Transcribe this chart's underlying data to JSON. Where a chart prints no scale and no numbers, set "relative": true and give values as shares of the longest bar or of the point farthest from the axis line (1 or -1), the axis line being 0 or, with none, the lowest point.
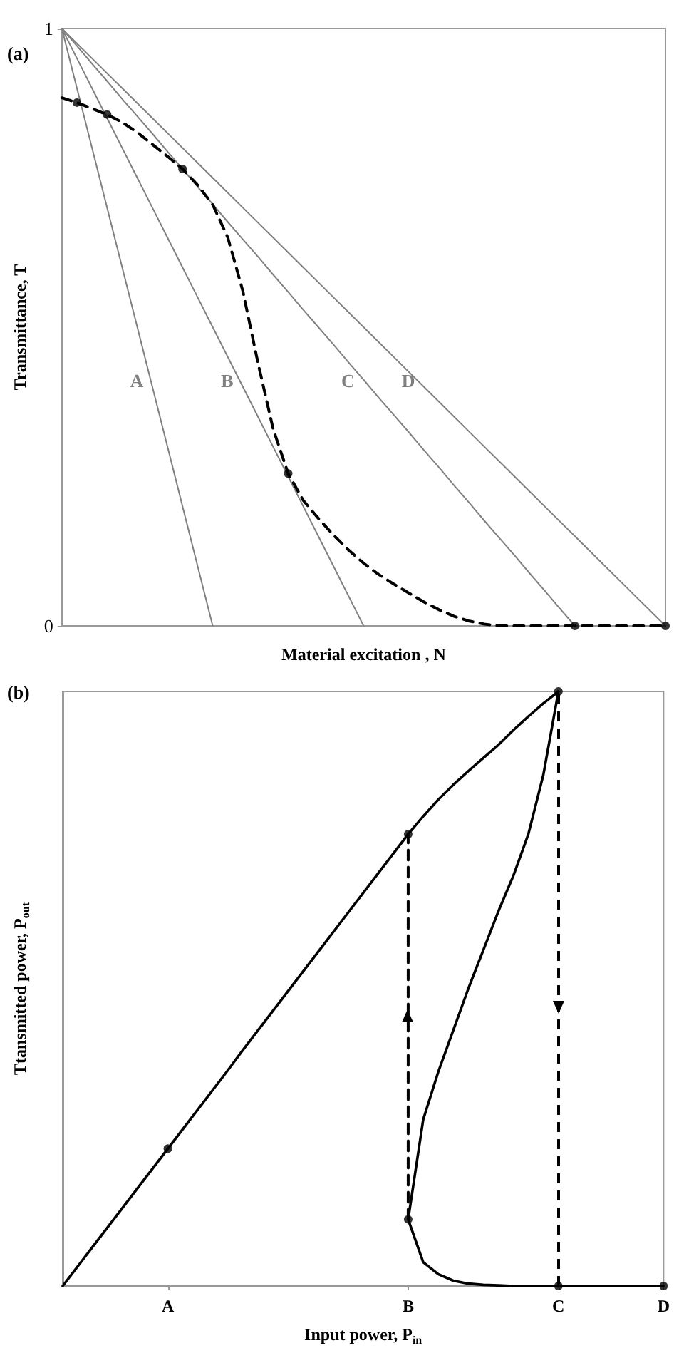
{
  "chart_data": [
    {
      "type": "line",
      "title": "(a)",
      "xlabel": "Material excitation , N",
      "ylabel": "Transmittance, T",
      "categories": [
        null,
        null,
        null,
        null,
        null,
        null,
        null,
        null,
        null,
        null,
        null,
        null,
        null,
        null,
        null,
        null,
        null,
        null,
        null,
        null,
        null,
        null,
        null,
        null,
        null,
        null,
        null,
        null,
        null,
        null,
        null,
        null,
        null,
        null,
        null,
        null,
        null,
        null,
        null,
        null,
        null
      ],
      "ylim": [
        0,
        1
      ],
      "yticks": [
        0,
        1
      ],
      "tick_labels": "y",
      "grid": false,
      "series": [
        {
          "name": "A",
          "values": [
            1,
            0.9,
            0.8,
            0.7,
            0.6,
            0.5,
            0.4,
            0.3,
            0.2,
            0.1,
            0,
            null,
            null,
            null,
            null,
            null,
            null,
            null,
            null,
            null,
            null,
            null,
            null,
            null,
            null,
            null,
            null,
            null,
            null,
            null,
            null,
            null,
            null,
            null,
            null,
            null,
            null,
            null,
            null,
            null,
            null
          ],
          "color": "#808080",
          "marker": "none"
        },
        {
          "name": "B",
          "values": [
            1,
            0.95,
            0.9,
            0.85,
            0.8,
            0.75,
            0.7,
            0.65,
            0.6,
            0.55,
            0.5,
            0.45,
            0.4,
            0.35,
            0.3,
            0.25,
            0.2,
            0.15,
            0.1,
            0.05,
            0,
            null,
            null,
            null,
            null,
            null,
            null,
            null,
            null,
            null,
            null,
            null,
            null,
            null,
            null,
            null,
            null,
            null,
            null,
            null,
            null
          ],
          "color": "#808080",
          "marker": "none"
        },
        {
          "name": "C",
          "values": [
            1,
            0.971,
            0.941,
            0.912,
            0.882,
            0.853,
            0.824,
            0.794,
            0.765,
            0.735,
            0.706,
            0.676,
            0.647,
            0.618,
            0.588,
            0.559,
            0.529,
            0.5,
            0.471,
            0.441,
            0.412,
            0.382,
            0.353,
            0.324,
            0.294,
            0.265,
            0.235,
            0.206,
            0.176,
            0.147,
            0.118,
            0.088,
            0.059,
            0.029,
            0,
            null,
            null,
            null,
            null,
            null,
            null
          ],
          "color": "#808080",
          "marker": "none"
        },
        {
          "name": "D",
          "values": [
            1,
            0.975,
            0.95,
            0.925,
            0.9,
            0.875,
            0.85,
            0.825,
            0.8,
            0.775,
            0.75,
            0.725,
            0.7,
            0.675,
            0.65,
            0.625,
            0.6,
            0.575,
            0.55,
            0.525,
            0.5,
            0.475,
            0.45,
            0.425,
            0.4,
            0.375,
            0.35,
            0.325,
            0.3,
            0.275,
            0.25,
            0.225,
            0.2,
            0.175,
            0.15,
            0.125,
            0.1,
            0.075,
            0.05,
            0.025,
            0
          ],
          "color": "#808080",
          "marker": "none"
        },
        {
          "values": [
            0.884,
            0.876,
            0.866,
            0.856,
            0.843,
            0.826,
            0.806,
            0.786,
            0.765,
            0.738,
            0.705,
            0.65,
            0.56,
            0.44,
            0.33,
            0.255,
            0.21,
            0.18,
            0.152,
            0.127,
            0.105,
            0.086,
            0.07,
            0.055,
            0.04,
            0.027,
            0.016,
            0.008,
            0.003,
            0,
            0,
            0,
            0,
            0,
            0,
            0,
            0,
            0,
            0,
            0,
            0
          ],
          "color": "#000000",
          "marker": "none",
          "line_style": "dashed"
        },
        {
          "type": "scatter",
          "values": [
            null,
            0.876,
            null,
            0.856,
            null,
            null,
            null,
            null,
            0.765,
            null,
            null,
            null,
            null,
            null,
            null,
            0.255,
            null,
            null,
            null,
            null,
            null,
            null,
            null,
            null,
            null,
            null,
            null,
            null,
            null,
            null,
            null,
            null,
            null,
            null,
            0,
            null,
            null,
            null,
            null,
            null,
            0
          ],
          "color": "#000000",
          "marker": "circle"
        }
      ]
    },
    {
      "type": "line",
      "title": "(b)",
      "xlabel": "Input power, P$_{in}$",
      "ylabel": "Ttansmitted power, P$_{out}$",
      "relative": true,
      "categories": [
        null,
        null,
        null,
        null,
        null,
        null,
        null,
        "A",
        null,
        null,
        null,
        null,
        null,
        null,
        null,
        null,
        null,
        null,
        null,
        null,
        null,
        null,
        null,
        "B",
        null,
        null,
        null,
        null,
        null,
        null,
        null,
        null,
        null,
        "C",
        null,
        null,
        null,
        null,
        null,
        null,
        "D"
      ],
      "tick_labels": "x",
      "grid": false,
      "series": [
        {
          "values": [
            0,
            0.033,
            0.066,
            0.099,
            0.132,
            0.165,
            0.198,
            0.231,
            0.264,
            0.297,
            0.33,
            0.363,
            0.397,
            0.43,
            0.463,
            0.496,
            0.529,
            0.562,
            0.595,
            0.628,
            0.661,
            0.694,
            0.727,
            0.76,
            0.79,
            0.818,
            0.843,
            0.866,
            0.888,
            0.91,
            0.935,
            0.958,
            0.98,
            1,
            null,
            null,
            null,
            null,
            null,
            null,
            null
          ],
          "color": "#000000",
          "marker": "none"
        },
        {
          "values": [
            null,
            null,
            null,
            null,
            null,
            null,
            null,
            null,
            null,
            null,
            null,
            null,
            null,
            null,
            null,
            null,
            null,
            null,
            null,
            null,
            null,
            null,
            null,
            0.112,
            0.28,
            0.36,
            0.43,
            0.5,
            0.565,
            0.63,
            0.69,
            0.76,
            0.86,
            1,
            null,
            null,
            null,
            null,
            null,
            null,
            null
          ],
          "color": "#000000",
          "marker": "none"
        },
        {
          "values": [
            null,
            null,
            null,
            null,
            null,
            null,
            null,
            null,
            null,
            null,
            null,
            null,
            null,
            null,
            null,
            null,
            null,
            null,
            null,
            null,
            null,
            null,
            null,
            0.112,
            0.04,
            0.02,
            0.009,
            0.004,
            0.002,
            0.001,
            0,
            0,
            0,
            0,
            0,
            0,
            0,
            0,
            0,
            0,
            0
          ],
          "color": "#000000",
          "marker": "none"
        },
        {
          "x": [
            "B",
            "B"
          ],
          "values": [
            0.112,
            0.76
          ],
          "color": "#000000",
          "marker": "none",
          "line_style": "dashed"
        },
        {
          "type": "scatter",
          "x": [
            "A",
            "B",
            "C",
            "B",
            "C",
            "D"
          ],
          "values": [
            0.231,
            0.76,
            1,
            0.112,
            0,
            0
          ],
          "color": "#000000",
          "marker": "circle"
        }
      ],
      "ref_lines": [
        {
          "axis": "x",
          "value": "C",
          "color": "#000000",
          "line_style": "dashed"
        }
      ]
    }
  ]
}
